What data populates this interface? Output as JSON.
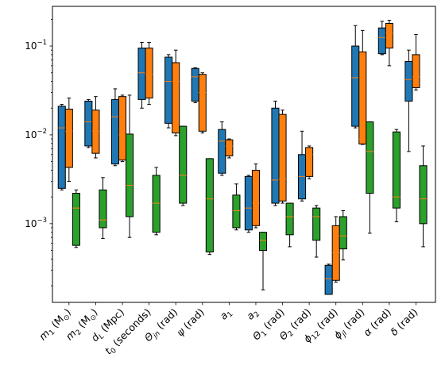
{
  "chart_data": {
    "type": "box",
    "title": "",
    "xlabel": "",
    "ylabel": "",
    "yscale": "log",
    "ylim": [
      0.00013,
      0.28
    ],
    "y_ticks": [
      {
        "value": 0.001,
        "base": "10",
        "exp": "−3"
      },
      {
        "value": 0.01,
        "base": "10",
        "exp": "−2"
      },
      {
        "value": 0.1,
        "base": "10",
        "exp": "−1"
      }
    ],
    "categories": [
      {
        "main": "m",
        "sub": "1",
        "rest": " (M",
        "rest_sub": "⊙",
        "end": ")"
      },
      {
        "main": "m",
        "sub": "2",
        "rest": " (M",
        "rest_sub": "⊙",
        "end": ")"
      },
      {
        "main": "d",
        "sub": "L",
        "rest": " (Mpc)",
        "rest_sub": "",
        "end": ""
      },
      {
        "main": "t",
        "sub": "0",
        "rest": " (seconds)",
        "rest_sub": "",
        "end": ""
      },
      {
        "main": "Θ",
        "sub": "jn",
        "rest": " (rad)",
        "rest_sub": "",
        "end": ""
      },
      {
        "main": "ψ",
        "sub": "",
        "rest": " (rad)",
        "rest_sub": "",
        "end": ""
      },
      {
        "main": "a",
        "sub": "1",
        "rest": "",
        "rest_sub": "",
        "end": ""
      },
      {
        "main": "a",
        "sub": "2",
        "rest": "",
        "rest_sub": "",
        "end": ""
      },
      {
        "main": "Θ",
        "sub": "1",
        "rest": " (rad)",
        "rest_sub": "",
        "end": ""
      },
      {
        "main": "Θ",
        "sub": "2",
        "rest": " (rad)",
        "rest_sub": "",
        "end": ""
      },
      {
        "main": "ϕ",
        "sub": "12",
        "rest": " (rad)",
        "rest_sub": "",
        "end": ""
      },
      {
        "main": "ϕ",
        "sub": "jl",
        "rest": " (rad)",
        "rest_sub": "",
        "end": ""
      },
      {
        "main": "α",
        "sub": "",
        "rest": " (rad)",
        "rest_sub": "",
        "end": ""
      },
      {
        "main": "δ",
        "sub": "",
        "rest": " (rad)",
        "rest_sub": "",
        "end": ""
      }
    ],
    "series": [
      {
        "color": "#1f77b4",
        "boxes": [
          {
            "whislo": 0.0024,
            "q1": 0.0025,
            "med": 0.012,
            "q3": 0.021,
            "whishi": 0.022
          },
          {
            "whislo": 0.0072,
            "q1": 0.0075,
            "med": 0.014,
            "q3": 0.024,
            "whishi": 0.025
          },
          {
            "whislo": 0.0045,
            "q1": 0.0047,
            "med": 0.016,
            "q3": 0.025,
            "whishi": 0.033
          },
          {
            "whislo": 0.02,
            "q1": 0.025,
            "med": 0.05,
            "q3": 0.095,
            "whishi": 0.11
          },
          {
            "whislo": 0.012,
            "q1": 0.0135,
            "med": 0.04,
            "q3": 0.075,
            "whishi": 0.08
          },
          {
            "whislo": 0.023,
            "q1": 0.024,
            "med": 0.045,
            "q3": 0.056,
            "whishi": 0.057
          },
          {
            "whislo": 0.0035,
            "q1": 0.0037,
            "med": 0.0085,
            "q3": 0.0115,
            "whishi": 0.014
          },
          {
            "whislo": 0.0008,
            "q1": 0.00085,
            "med": 0.0015,
            "q3": 0.0034,
            "whishi": 0.0035
          },
          {
            "whislo": 0.0016,
            "q1": 0.0017,
            "med": 0.0031,
            "q3": 0.02,
            "whishi": 0.024
          },
          {
            "whislo": 0.0018,
            "q1": 0.0019,
            "med": 0.0034,
            "q3": 0.006,
            "whishi": 0.011
          },
          {
            "whislo": 0.00016,
            "q1": 0.00016,
            "med": 0.00024,
            "q3": 0.00034,
            "whishi": 0.00035
          },
          {
            "whislo": 0.012,
            "q1": 0.0125,
            "med": 0.044,
            "q3": 0.1,
            "whishi": 0.17
          },
          {
            "whislo": 0.08,
            "q1": 0.082,
            "med": 0.125,
            "q3": 0.16,
            "whishi": 0.19
          },
          {
            "whislo": 0.0065,
            "q1": 0.024,
            "med": 0.042,
            "q3": 0.067,
            "whishi": 0.09
          }
        ]
      },
      {
        "color": "#ff7f0e",
        "boxes": [
          {
            "whislo": 0.003,
            "q1": 0.0043,
            "med": 0.011,
            "q3": 0.0195,
            "whishi": 0.026
          },
          {
            "whislo": 0.0055,
            "q1": 0.0062,
            "med": 0.011,
            "q3": 0.019,
            "whishi": 0.027
          },
          {
            "whislo": 0.005,
            "q1": 0.0052,
            "med": 0.01,
            "q3": 0.027,
            "whishi": 0.028
          },
          {
            "whislo": 0.022,
            "q1": 0.026,
            "med": 0.048,
            "q3": 0.095,
            "whishi": 0.11
          },
          {
            "whislo": 0.0098,
            "q1": 0.0105,
            "med": 0.04,
            "q3": 0.065,
            "whishi": 0.09
          },
          {
            "whislo": 0.0105,
            "q1": 0.011,
            "med": 0.03,
            "q3": 0.048,
            "whishi": 0.05
          },
          {
            "whislo": 0.0055,
            "q1": 0.0058,
            "med": 0.0075,
            "q3": 0.0088,
            "whishi": 0.009
          },
          {
            "whislo": 0.0009,
            "q1": 0.00095,
            "med": 0.0017,
            "q3": 0.004,
            "whishi": 0.0047
          },
          {
            "whislo": 0.0017,
            "q1": 0.0018,
            "med": 0.0032,
            "q3": 0.017,
            "whishi": 0.019
          },
          {
            "whislo": 0.0032,
            "q1": 0.0034,
            "med": 0.006,
            "q3": 0.0072,
            "whishi": 0.0075
          },
          {
            "whislo": 0.00022,
            "q1": 0.00023,
            "med": 0.00047,
            "q3": 0.00095,
            "whishi": 0.0012
          },
          {
            "whislo": 0.0078,
            "q1": 0.0079,
            "med": 0.009,
            "q3": 0.086,
            "whishi": 0.15
          },
          {
            "whislo": 0.06,
            "q1": 0.095,
            "med": 0.14,
            "q3": 0.18,
            "whishi": 0.195
          },
          {
            "whislo": 0.032,
            "q1": 0.034,
            "med": 0.045,
            "q3": 0.08,
            "whishi": 0.135
          }
        ]
      },
      {
        "color": "#2ca02c",
        "boxes": [
          {
            "whislo": 0.00054,
            "q1": 0.00057,
            "med": 0.0015,
            "q3": 0.0022,
            "whishi": 0.0024
          },
          {
            "whislo": 0.00068,
            "q1": 0.0009,
            "med": 0.0011,
            "q3": 0.0024,
            "whishi": 0.0033
          },
          {
            "whislo": 0.0007,
            "q1": 0.0012,
            "med": 0.0027,
            "q3": 0.0102,
            "whishi": 0.028
          },
          {
            "whislo": 0.00075,
            "q1": 0.0008,
            "med": 0.0017,
            "q3": 0.0035,
            "whishi": 0.0043
          },
          {
            "whislo": 0.0016,
            "q1": 0.0017,
            "med": 0.0035,
            "q3": 0.0125,
            "whishi": 0.0125
          },
          {
            "whislo": 0.00045,
            "q1": 0.00048,
            "med": 0.0019,
            "q3": 0.0054,
            "whishi": 0.0054
          },
          {
            "whislo": 0.00085,
            "q1": 0.0009,
            "med": 0.0014,
            "q3": 0.0021,
            "whishi": 0.0028
          },
          {
            "whislo": 0.00018,
            "q1": 0.0005,
            "med": 0.00065,
            "q3": 0.0008,
            "whishi": 0.0008
          },
          {
            "whislo": 0.00055,
            "q1": 0.00075,
            "med": 0.0012,
            "q3": 0.0017,
            "whishi": 0.0017
          },
          {
            "whislo": 0.00042,
            "q1": 0.00065,
            "med": 0.0012,
            "q3": 0.0015,
            "whishi": 0.0016
          },
          {
            "whislo": 0.00039,
            "q1": 0.00052,
            "med": 0.00073,
            "q3": 0.0012,
            "whishi": 0.0014
          },
          {
            "whislo": 0.00078,
            "q1": 0.0022,
            "med": 0.0065,
            "q3": 0.014,
            "whishi": 0.014
          },
          {
            "whislo": 0.00105,
            "q1": 0.0015,
            "med": 0.002,
            "q3": 0.0108,
            "whishi": 0.0115
          },
          {
            "whislo": 0.00055,
            "q1": 0.001,
            "med": 0.0019,
            "q3": 0.0045,
            "whishi": 0.0075
          }
        ]
      }
    ],
    "median_color": "#ff7f0e",
    "legend": "none",
    "grid": false
  }
}
